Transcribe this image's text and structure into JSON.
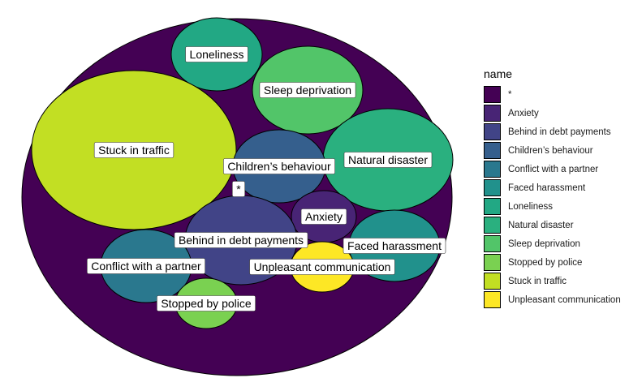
{
  "chart_data": {
    "type": "circle-packing",
    "legend": {
      "title": "name",
      "placement": "right",
      "items": [
        {
          "label": "*",
          "color": "#440154"
        },
        {
          "label": "Anxiety",
          "color": "#482475"
        },
        {
          "label": "Behind in debt payments",
          "color": "#414487"
        },
        {
          "label": "Children’s behaviour",
          "color": "#355f8d"
        },
        {
          "label": "Conflict with a partner",
          "color": "#2a788e"
        },
        {
          "label": "Faced harassment",
          "color": "#21918c"
        },
        {
          "label": "Loneliness",
          "color": "#22a884"
        },
        {
          "label": "Natural disaster",
          "color": "#2ab07f"
        },
        {
          "label": "Sleep deprivation",
          "color": "#52c569"
        },
        {
          "label": "Stopped by police",
          "color": "#7ad151"
        },
        {
          "label": "Stuck in traffic",
          "color": "#c2df23"
        },
        {
          "label": "Unpleasant communication",
          "color": "#fde725"
        }
      ]
    },
    "circles": [
      {
        "label": "*",
        "color": "#440154",
        "parent": true
      },
      {
        "label": "Loneliness",
        "color": "#22a884"
      },
      {
        "label": "Sleep deprivation",
        "color": "#52c569"
      },
      {
        "label": "Stuck in traffic",
        "color": "#c2df23"
      },
      {
        "label": "Natural disaster",
        "color": "#2ab07f"
      },
      {
        "label": "Children’s behaviour",
        "color": "#355f8d"
      },
      {
        "label": "Anxiety",
        "color": "#482475"
      },
      {
        "label": "Behind in debt payments",
        "color": "#414487"
      },
      {
        "label": "Faced harassment",
        "color": "#21918c"
      },
      {
        "label": "Conflict with a partner",
        "color": "#2a788e"
      },
      {
        "label": "Unpleasant communication",
        "color": "#fde725"
      },
      {
        "label": "Stopped by police",
        "color": "#7ad151"
      }
    ]
  }
}
